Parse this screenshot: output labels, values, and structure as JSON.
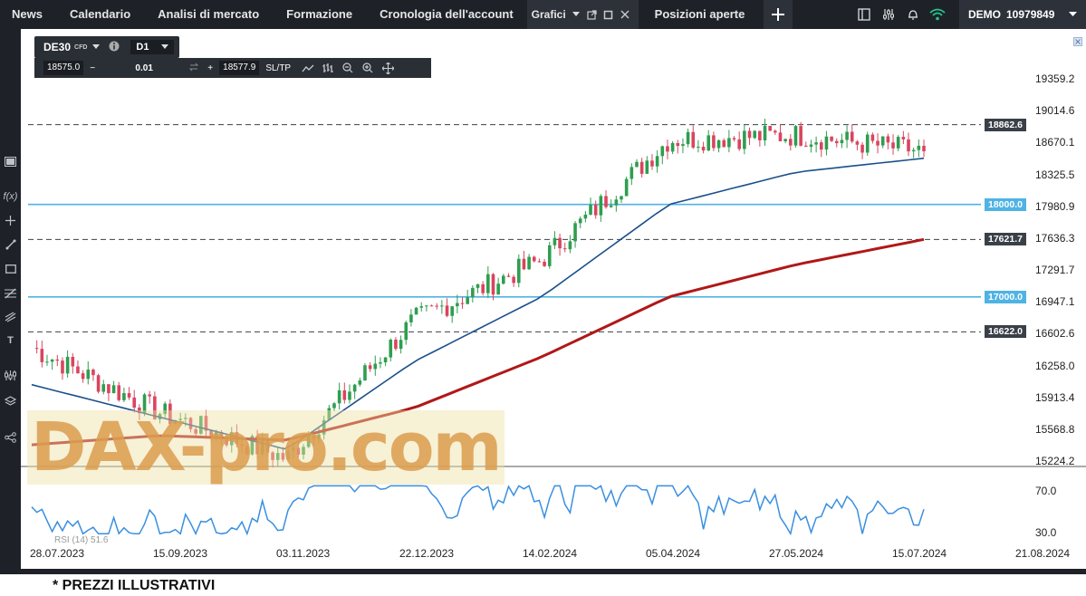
{
  "nav": {
    "items": [
      "News",
      "Calendario",
      "Analisi di mercato",
      "Formazione",
      "Cronologia dell'account"
    ],
    "grafici_label": "Grafici",
    "positions_label": "Posizioni aperte",
    "account_mode": "DEMO",
    "account_number": "10979849"
  },
  "instrument": {
    "symbol": "DE30",
    "type_badge": "CFD",
    "timeframe": "D1"
  },
  "trade": {
    "bid": "18575.0",
    "volume": "0.01",
    "ask": "18577.9",
    "sltp_label": "SL/TP",
    "minus": "−",
    "plus": "+"
  },
  "axis": {
    "price_ticks": [
      "19359.2",
      "19014.6",
      "18670.1",
      "18325.5",
      "17980.9",
      "17636.3",
      "17291.7",
      "16947.1",
      "16602.6",
      "16258.0",
      "15913.4",
      "15568.8",
      "15224.2"
    ],
    "rsi_ticks": [
      "70.0",
      "30.0"
    ],
    "date_ticks": [
      "28.07.2023",
      "15.09.2023",
      "03.11.2023",
      "22.12.2023",
      "14.02.2024",
      "05.04.2024",
      "27.05.2024",
      "15.07.2024",
      "21.08.2024"
    ]
  },
  "levels": [
    {
      "label": "18862.6",
      "style": "dashed",
      "color": "#3a4048"
    },
    {
      "label": "18000.0",
      "style": "solid",
      "color": "#4fb3e3"
    },
    {
      "label": "17621.7",
      "style": "dashed",
      "color": "#3a4048"
    },
    {
      "label": "17000.0",
      "style": "solid",
      "color": "#4fb3e3"
    },
    {
      "label": "16622.0",
      "style": "dashed",
      "color": "#3a4048"
    }
  ],
  "rsi_label": "RSI (14) 51.6",
  "watermark": "DAX-pro.com",
  "disclaimer": "* PREZZI ILLUSTRATIVI",
  "colors": {
    "bull": "#2e9e4f",
    "bear": "#d9455f",
    "ma_fast": "#1a4f8a",
    "ma_slow": "#b01818",
    "rsi": "#3a8fe0",
    "topbar": "#1e2228"
  },
  "chart_data": {
    "type": "line",
    "title": "",
    "instrument": "DE30",
    "timeframe": "D1",
    "x": [
      "28.07.2023",
      "15.09.2023",
      "03.11.2023",
      "22.12.2023",
      "14.02.2024",
      "05.04.2024",
      "27.05.2024",
      "15.07.2024"
    ],
    "series": [
      {
        "values": [
          16450,
          15750,
          15250,
          16750,
          17400,
          18700,
          18750,
          18575
        ]
      },
      {
        "values": [
          16050,
          15700,
          15350,
          16300,
          17000,
          18000,
          18350,
          18500
        ]
      },
      {
        "values": [
          15400,
          15500,
          15450,
          15800,
          16350,
          17000,
          17350,
          17621.7
        ]
      }
    ],
    "rsi": {
      "name": "RSI (14)",
      "last": 51.6,
      "levels": [
        70.0,
        30.0
      ]
    },
    "horizontal_levels": [
      18862.6,
      18000.0,
      17621.7,
      17000.0,
      16622.0
    ],
    "ylim": [
      15224.2,
      19359.2
    ]
  }
}
